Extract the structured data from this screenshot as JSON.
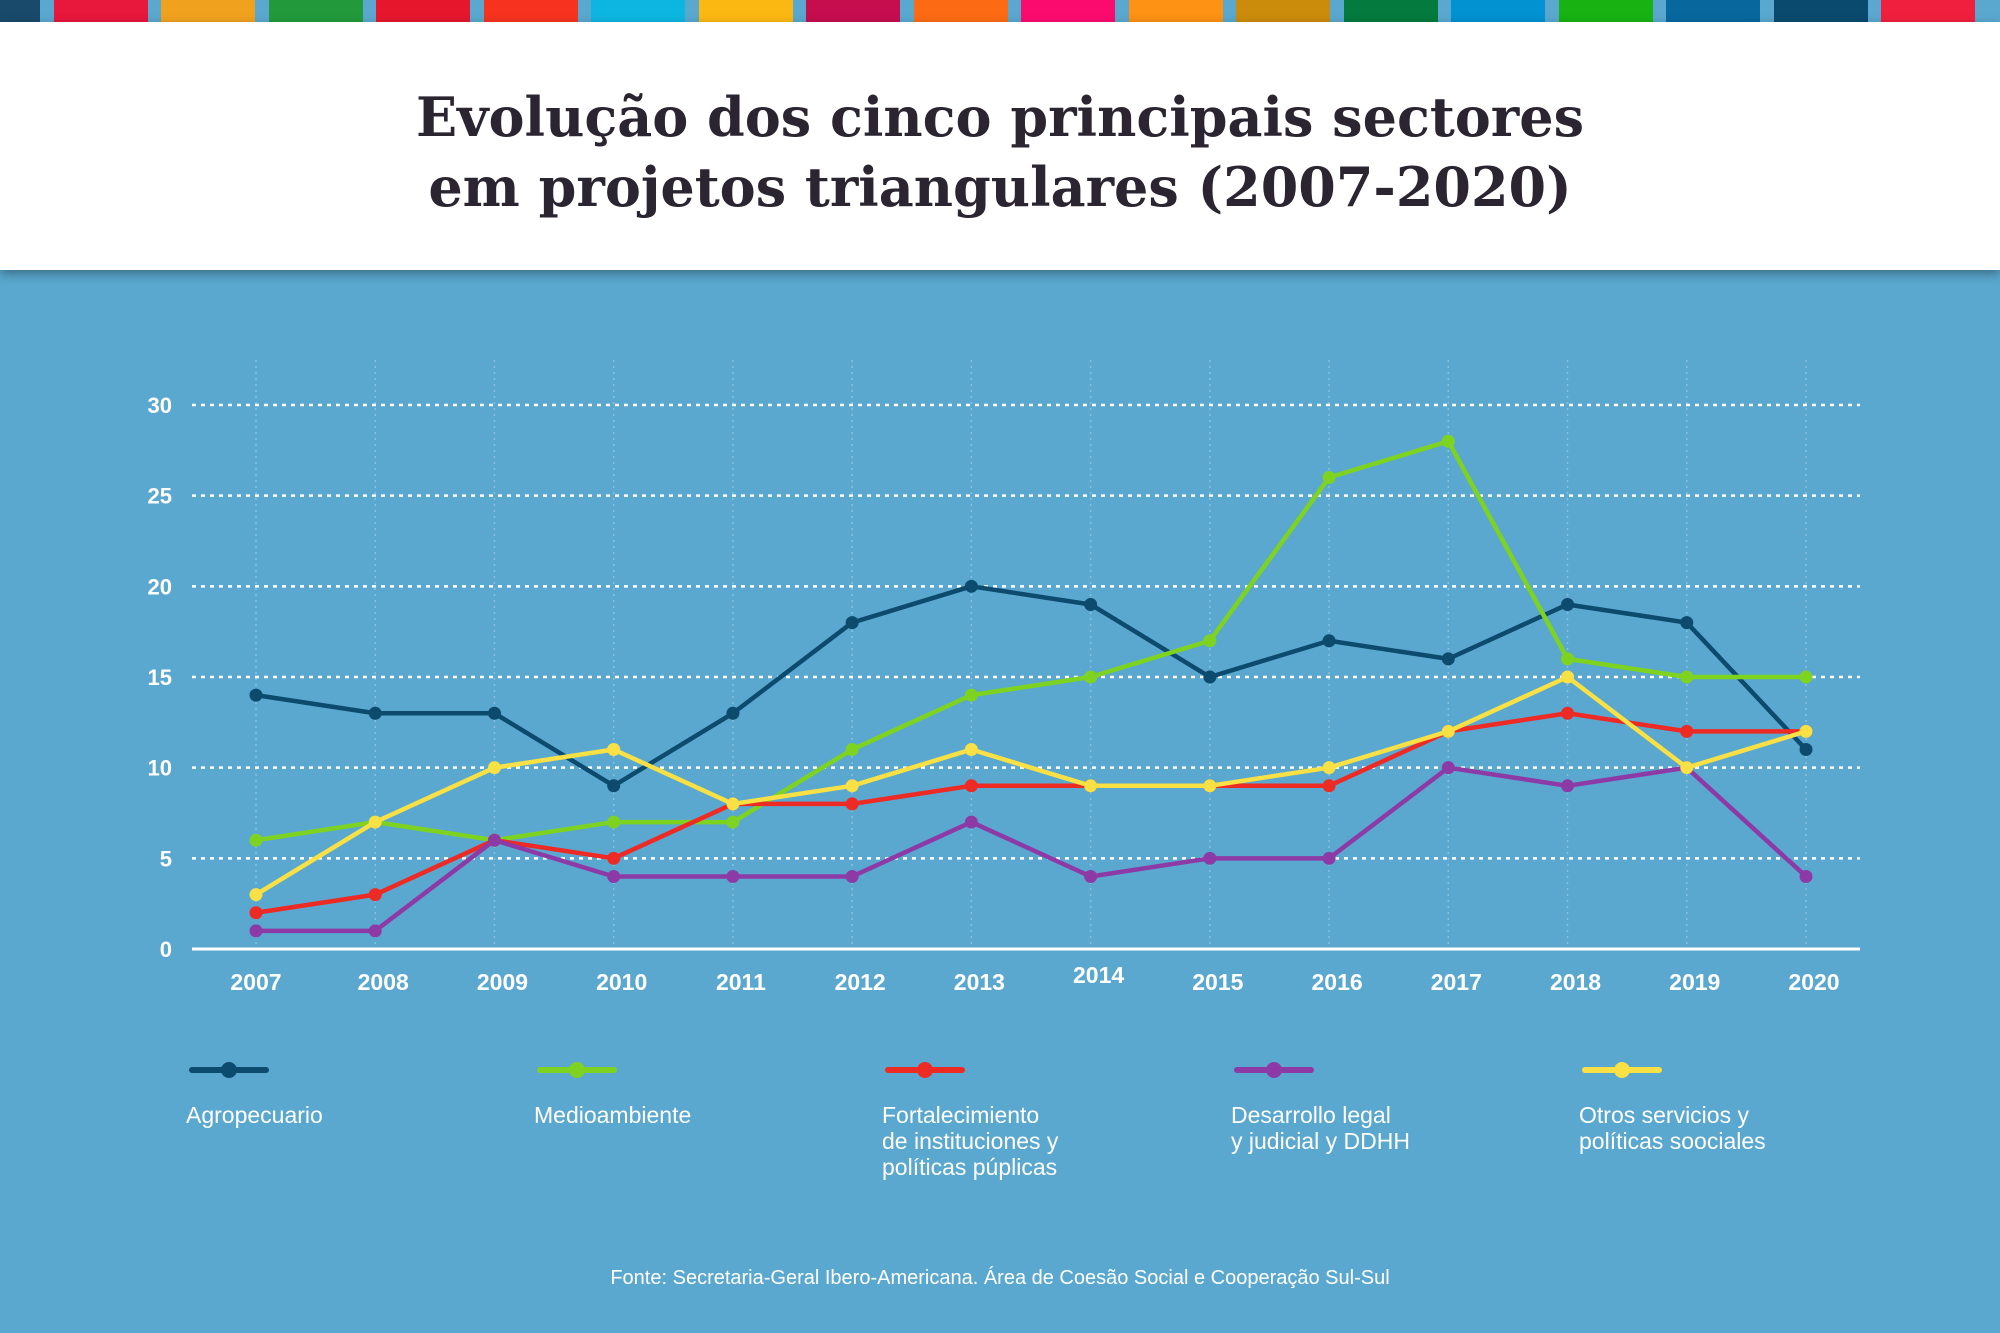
{
  "top_bar_colors": [
    "#1a4a6b",
    "#e8173c",
    "#f0a21f",
    "#229a3c",
    "#e6172d",
    "#f7331f",
    "#0db6e0",
    "#fcb812",
    "#c60e4f",
    "#fc6b14",
    "#fc0b6e",
    "#fd9214",
    "#cb8c0c",
    "#047a3e",
    "#0292d2",
    "#18b313",
    "#08689e",
    "#0a4a6e",
    "#f01f3d"
  ],
  "header": {
    "title_line1": "Evolução dos cinco principais sectores",
    "title_line2": "em projetos triangulares (2007-2020)"
  },
  "chart_data": {
    "type": "line",
    "title": "Evolução dos cinco principais sectores em projetos triangulares (2007-2020)",
    "x": [
      "2007",
      "2008",
      "2009",
      "2010",
      "2011",
      "2012",
      "2013",
      "2014",
      "2015",
      "2016",
      "2017",
      "2018",
      "2019",
      "2020"
    ],
    "ylim": [
      0,
      30
    ],
    "yticks": [
      0,
      5,
      10,
      15,
      20,
      25,
      30
    ],
    "grid": true,
    "legend_position": "bottom",
    "series": [
      {
        "name": "Agropecuario",
        "color": "#0c4a6e",
        "values": [
          14,
          13,
          13,
          9,
          13,
          18,
          20,
          19,
          15,
          17,
          16,
          19,
          18,
          11
        ]
      },
      {
        "name": "Medioambiente",
        "color": "#7ed321",
        "values": [
          6,
          7,
          6,
          7,
          7,
          11,
          14,
          15,
          17,
          26,
          28,
          16,
          15,
          15
        ]
      },
      {
        "name": "Fortalecimiento\nde instituciones y\npolíticas púplicas",
        "color": "#ee2a24",
        "values": [
          2,
          3,
          6,
          5,
          8,
          8,
          9,
          9,
          9,
          9,
          12,
          13,
          12,
          12
        ]
      },
      {
        "name": "Desarrollo legal\ny judicial y DDHH",
        "color": "#8e3aa6",
        "values": [
          1,
          1,
          6,
          4,
          4,
          4,
          7,
          4,
          5,
          5,
          10,
          9,
          10,
          4
        ]
      },
      {
        "name": "Otros servicios y\npolíticas soociales",
        "color": "#f8e045",
        "values": [
          3,
          7,
          10,
          11,
          8,
          9,
          11,
          9,
          9,
          10,
          12,
          15,
          10,
          12
        ]
      }
    ]
  },
  "source": "Fonte:  Secretaria-Geral Ibero-Americana. Área de Coesão Social e Cooperação Sul-Sul"
}
